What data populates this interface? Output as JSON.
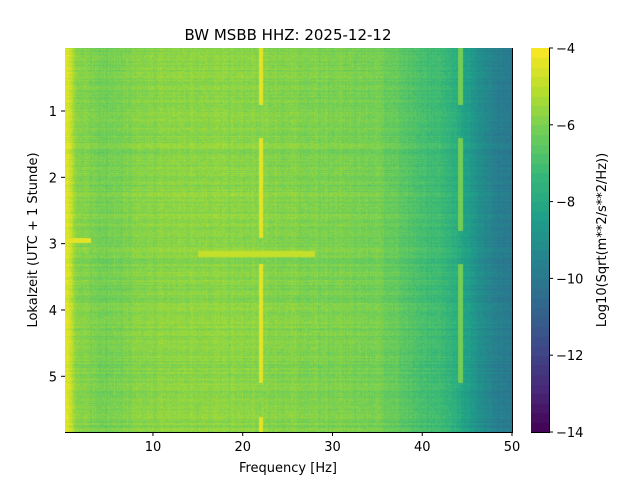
{
  "chart_data": {
    "type": "heatmap",
    "title": "BW MSBB  HHZ: 2025-12-12",
    "xlabel": "Frequency [Hz]",
    "ylabel": "Lokalzeit (UTC + 1 Stunde)",
    "xlim": [
      0.2,
      50
    ],
    "ylim": [
      5.84,
      0.05
    ],
    "xticks": [
      10,
      20,
      30,
      40,
      50
    ],
    "yticks": [
      1,
      2,
      3,
      4,
      5
    ],
    "grid": true,
    "colormap": "viridis",
    "colorbar": {
      "label": "Log10(Sqrt(m**2/s**2/Hz))",
      "range": [
        -14,
        -4
      ],
      "ticks": [
        -4,
        -6,
        -8,
        -10,
        -12,
        -14
      ],
      "levels": 40
    },
    "frequency_profile": {
      "freq_hz": [
        0.2,
        0.8,
        1.5,
        5,
        10,
        15,
        20,
        25,
        30,
        35,
        37,
        39,
        41,
        43,
        45,
        47,
        49,
        50
      ],
      "level": [
        -4.3,
        -4.8,
        -5.9,
        -6.1,
        -5.8,
        -5.7,
        -5.8,
        -5.9,
        -6.0,
        -6.1,
        -6.4,
        -6.9,
        -7.1,
        -7.4,
        -8.4,
        -9.3,
        -9.8,
        -10.0
      ]
    },
    "spectral_lines": [
      {
        "freq_hz": 22,
        "level": -4.3,
        "segments": [
          [
            0.05,
            0.9
          ],
          [
            1.4,
            2.9
          ],
          [
            3.3,
            5.1
          ],
          [
            5.6,
            5.84
          ]
        ]
      },
      {
        "freq_hz": 44.2,
        "level": -6.2,
        "segments": [
          [
            0.05,
            0.9
          ],
          [
            1.4,
            2.8
          ],
          [
            3.3,
            5.1
          ]
        ]
      }
    ],
    "transient_bands": [
      {
        "time_h": 3.15,
        "freq_hz": [
          15,
          28
        ],
        "level": -4.8
      },
      {
        "time_h": 2.95,
        "freq_hz": [
          0.2,
          3
        ],
        "level": -4.4
      }
    ]
  }
}
